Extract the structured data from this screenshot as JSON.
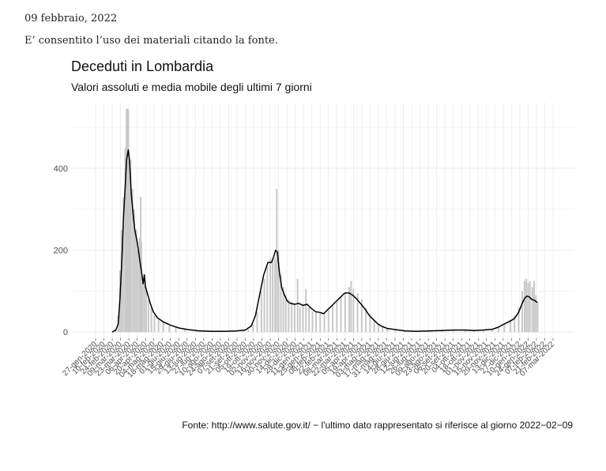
{
  "document": {
    "date": "09 febbraio, 2022",
    "note": "E’ consentito l’uso dei materiali citando la fonte."
  },
  "chart_data": {
    "type": "bar",
    "title": "Deceduti in Lombardia",
    "subtitle": "Valori assoluti e media mobile degli ultimi 7 giorni",
    "caption": "Fonte: http://www.salute.gov.it/ − l'ultimo dato rappresentato si riferisce al giorno 2022−02−09",
    "xlabel": "",
    "ylabel": "",
    "ylim": [
      -15,
      560
    ],
    "yticks": [
      0,
      200,
      400
    ],
    "grid": true,
    "legend": "none",
    "colors": {
      "bars": "#c8c8c8",
      "line": "#000000",
      "grid": "#ebebeb",
      "tick": "#4d4d4d"
    },
    "x_range": [
      "2020-02-24",
      "2022-02-09"
    ],
    "x_ticks": [
      "27-gen-2020",
      "10-feb-2020",
      "24-feb-2020",
      "09-mar-2020",
      "23-mar-2020",
      "06-apr-2020",
      "20-apr-2020",
      "04-mag-2020",
      "18-mag-2020",
      "01-giu-2020",
      "15-giu-2020",
      "29-giu-2020",
      "13-lug-2020",
      "27-lug-2020",
      "10-ago-2020",
      "24-ago-2020",
      "07-set-2020",
      "21-set-2020",
      "05-ott-2020",
      "19-ott-2020",
      "02-nov-2020",
      "16-nov-2020",
      "30-nov-2020",
      "14-dic-2020",
      "28-dic-2020",
      "11-gen-2021",
      "25-gen-2021",
      "08-feb-2021",
      "22-feb-2021",
      "08-mar-2021",
      "22-mar-2021",
      "05-apr-2021",
      "19-apr-2021",
      "03-mag-2021",
      "17-mag-2021",
      "31-mag-2021",
      "14-giu-2021",
      "28-giu-2021",
      "12-lug-2021",
      "26-lug-2021",
      "09-ago-2021",
      "23-ago-2021",
      "06-set-2021",
      "20-set-2021",
      "04-ott-2021",
      "18-ott-2021",
      "01-nov-2021",
      "15-nov-2021",
      "29-nov-2021",
      "13-dic-2021",
      "27-dic-2021",
      "10-gen-2022",
      "24-gen-2022",
      "07-feb-2022",
      "21-feb-2022",
      "07-mar-2022"
    ],
    "series": [
      {
        "kind": "bars",
        "points": [
          [
            "2020-02-24",
            2
          ],
          [
            "2020-03-01",
            8
          ],
          [
            "2020-03-05",
            40
          ],
          [
            "2020-03-08",
            150
          ],
          [
            "2020-03-11",
            250
          ],
          [
            "2020-03-14",
            330
          ],
          [
            "2020-03-17",
            450
          ],
          [
            "2020-03-19",
            545
          ],
          [
            "2020-03-21",
            546
          ],
          [
            "2020-03-22",
            540
          ],
          [
            "2020-03-24",
            400
          ],
          [
            "2020-03-26",
            420
          ],
          [
            "2020-03-29",
            350
          ],
          [
            "2020-04-01",
            300
          ],
          [
            "2020-04-04",
            250
          ],
          [
            "2020-04-07",
            200
          ],
          [
            "2020-04-10",
            230
          ],
          [
            "2020-04-12",
            330
          ],
          [
            "2020-04-13",
            220
          ],
          [
            "2020-04-15",
            120
          ],
          [
            "2020-04-18",
            130
          ],
          [
            "2020-04-21",
            110
          ],
          [
            "2020-04-25",
            80
          ],
          [
            "2020-04-30",
            60
          ],
          [
            "2020-05-05",
            40
          ],
          [
            "2020-05-12",
            30
          ],
          [
            "2020-05-20",
            25
          ],
          [
            "2020-05-30",
            15
          ],
          [
            "2020-06-10",
            12
          ],
          [
            "2020-06-25",
            6
          ],
          [
            "2020-07-15",
            3
          ],
          [
            "2020-08-05",
            2
          ],
          [
            "2020-08-25",
            2
          ],
          [
            "2020-09-15",
            3
          ],
          [
            "2020-10-01",
            4
          ],
          [
            "2020-10-10",
            6
          ],
          [
            "2020-10-18",
            20
          ],
          [
            "2020-10-25",
            50
          ],
          [
            "2020-11-01",
            100
          ],
          [
            "2020-11-06",
            130
          ],
          [
            "2020-11-11",
            160
          ],
          [
            "2020-11-16",
            180
          ],
          [
            "2020-11-20",
            175
          ],
          [
            "2020-11-24",
            180
          ],
          [
            "2020-11-27",
            350
          ],
          [
            "2020-11-30",
            200
          ],
          [
            "2020-12-04",
            140
          ],
          [
            "2020-12-08",
            110
          ],
          [
            "2020-12-12",
            90
          ],
          [
            "2020-12-17",
            80
          ],
          [
            "2020-12-22",
            75
          ],
          [
            "2020-12-27",
            70
          ],
          [
            "2021-01-01",
            130
          ],
          [
            "2021-01-05",
            60
          ],
          [
            "2021-01-10",
            70
          ],
          [
            "2021-01-15",
            105
          ],
          [
            "2021-01-20",
            60
          ],
          [
            "2021-01-26",
            50
          ],
          [
            "2021-02-01",
            50
          ],
          [
            "2021-02-08",
            45
          ],
          [
            "2021-02-15",
            45
          ],
          [
            "2021-02-22",
            55
          ],
          [
            "2021-03-01",
            65
          ],
          [
            "2021-03-08",
            75
          ],
          [
            "2021-03-15",
            85
          ],
          [
            "2021-03-22",
            95
          ],
          [
            "2021-03-29",
            110
          ],
          [
            "2021-04-01",
            125
          ],
          [
            "2021-04-05",
            105
          ],
          [
            "2021-04-12",
            95
          ],
          [
            "2021-04-19",
            80
          ],
          [
            "2021-04-26",
            60
          ],
          [
            "2021-05-03",
            45
          ],
          [
            "2021-05-10",
            30
          ],
          [
            "2021-05-17",
            20
          ],
          [
            "2021-05-24",
            15
          ],
          [
            "2021-06-01",
            10
          ],
          [
            "2021-06-15",
            6
          ],
          [
            "2021-07-01",
            3
          ],
          [
            "2021-07-20",
            2
          ],
          [
            "2021-08-10",
            3
          ],
          [
            "2021-09-01",
            4
          ],
          [
            "2021-09-20",
            5
          ],
          [
            "2021-10-10",
            5
          ],
          [
            "2021-10-25",
            5
          ],
          [
            "2021-11-10",
            6
          ],
          [
            "2021-11-25",
            8
          ],
          [
            "2021-12-05",
            12
          ],
          [
            "2021-12-15",
            20
          ],
          [
            "2021-12-25",
            30
          ],
          [
            "2022-01-01",
            40
          ],
          [
            "2022-01-08",
            60
          ],
          [
            "2022-01-14",
            100
          ],
          [
            "2022-01-18",
            125
          ],
          [
            "2022-01-21",
            130
          ],
          [
            "2022-01-24",
            120
          ],
          [
            "2022-01-27",
            125
          ],
          [
            "2022-01-31",
            110
          ],
          [
            "2022-02-03",
            125
          ],
          [
            "2022-02-06",
            90
          ],
          [
            "2022-02-09",
            70
          ]
        ]
      },
      {
        "kind": "line",
        "points": [
          [
            "2020-02-24",
            0
          ],
          [
            "2020-03-01",
            5
          ],
          [
            "2020-03-05",
            20
          ],
          [
            "2020-03-08",
            80
          ],
          [
            "2020-03-11",
            170
          ],
          [
            "2020-03-14",
            280
          ],
          [
            "2020-03-17",
            360
          ],
          [
            "2020-03-19",
            420
          ],
          [
            "2020-03-22",
            445
          ],
          [
            "2020-03-24",
            420
          ],
          [
            "2020-03-27",
            340
          ],
          [
            "2020-03-30",
            290
          ],
          [
            "2020-04-02",
            250
          ],
          [
            "2020-04-06",
            220
          ],
          [
            "2020-04-09",
            190
          ],
          [
            "2020-04-12",
            160
          ],
          [
            "2020-04-14",
            140
          ],
          [
            "2020-04-16",
            118
          ],
          [
            "2020-04-18",
            140
          ],
          [
            "2020-04-20",
            110
          ],
          [
            "2020-04-24",
            90
          ],
          [
            "2020-04-28",
            70
          ],
          [
            "2020-05-03",
            50
          ],
          [
            "2020-05-10",
            35
          ],
          [
            "2020-05-20",
            25
          ],
          [
            "2020-06-01",
            17
          ],
          [
            "2020-06-15",
            10
          ],
          [
            "2020-07-01",
            6
          ],
          [
            "2020-07-20",
            3
          ],
          [
            "2020-08-10",
            2
          ],
          [
            "2020-09-01",
            2
          ],
          [
            "2020-09-20",
            3
          ],
          [
            "2020-10-05",
            5
          ],
          [
            "2020-10-15",
            15
          ],
          [
            "2020-10-22",
            40
          ],
          [
            "2020-10-29",
            90
          ],
          [
            "2020-11-05",
            140
          ],
          [
            "2020-11-12",
            170
          ],
          [
            "2020-11-18",
            170
          ],
          [
            "2020-11-22",
            185
          ],
          [
            "2020-11-25",
            200
          ],
          [
            "2020-11-28",
            195
          ],
          [
            "2020-12-01",
            150
          ],
          [
            "2020-12-05",
            110
          ],
          [
            "2020-12-10",
            90
          ],
          [
            "2020-12-15",
            75
          ],
          [
            "2020-12-20",
            70
          ],
          [
            "2020-12-27",
            68
          ],
          [
            "2021-01-03",
            70
          ],
          [
            "2021-01-10",
            65
          ],
          [
            "2021-01-17",
            68
          ],
          [
            "2021-01-24",
            58
          ],
          [
            "2021-01-31",
            50
          ],
          [
            "2021-02-07",
            48
          ],
          [
            "2021-02-14",
            45
          ],
          [
            "2021-02-21",
            55
          ],
          [
            "2021-02-28",
            65
          ],
          [
            "2021-03-07",
            75
          ],
          [
            "2021-03-14",
            85
          ],
          [
            "2021-03-21",
            95
          ],
          [
            "2021-03-28",
            96
          ],
          [
            "2021-04-04",
            90
          ],
          [
            "2021-04-11",
            80
          ],
          [
            "2021-04-18",
            68
          ],
          [
            "2021-04-25",
            55
          ],
          [
            "2021-05-02",
            40
          ],
          [
            "2021-05-09",
            30
          ],
          [
            "2021-05-16",
            20
          ],
          [
            "2021-05-23",
            14
          ],
          [
            "2021-06-01",
            9
          ],
          [
            "2021-06-15",
            6
          ],
          [
            "2021-07-01",
            3
          ],
          [
            "2021-07-20",
            2
          ],
          [
            "2021-08-10",
            3
          ],
          [
            "2021-09-01",
            4
          ],
          [
            "2021-09-20",
            5
          ],
          [
            "2021-10-10",
            5
          ],
          [
            "2021-10-25",
            4
          ],
          [
            "2021-11-10",
            5
          ],
          [
            "2021-11-25",
            7
          ],
          [
            "2021-12-05",
            12
          ],
          [
            "2021-12-15",
            20
          ],
          [
            "2021-12-25",
            27
          ],
          [
            "2022-01-01",
            33
          ],
          [
            "2022-01-08",
            48
          ],
          [
            "2022-01-14",
            70
          ],
          [
            "2022-01-18",
            82
          ],
          [
            "2022-01-22",
            88
          ],
          [
            "2022-01-26",
            86
          ],
          [
            "2022-01-30",
            80
          ],
          [
            "2022-02-03",
            78
          ],
          [
            "2022-02-06",
            75
          ],
          [
            "2022-02-09",
            72
          ]
        ]
      }
    ]
  }
}
